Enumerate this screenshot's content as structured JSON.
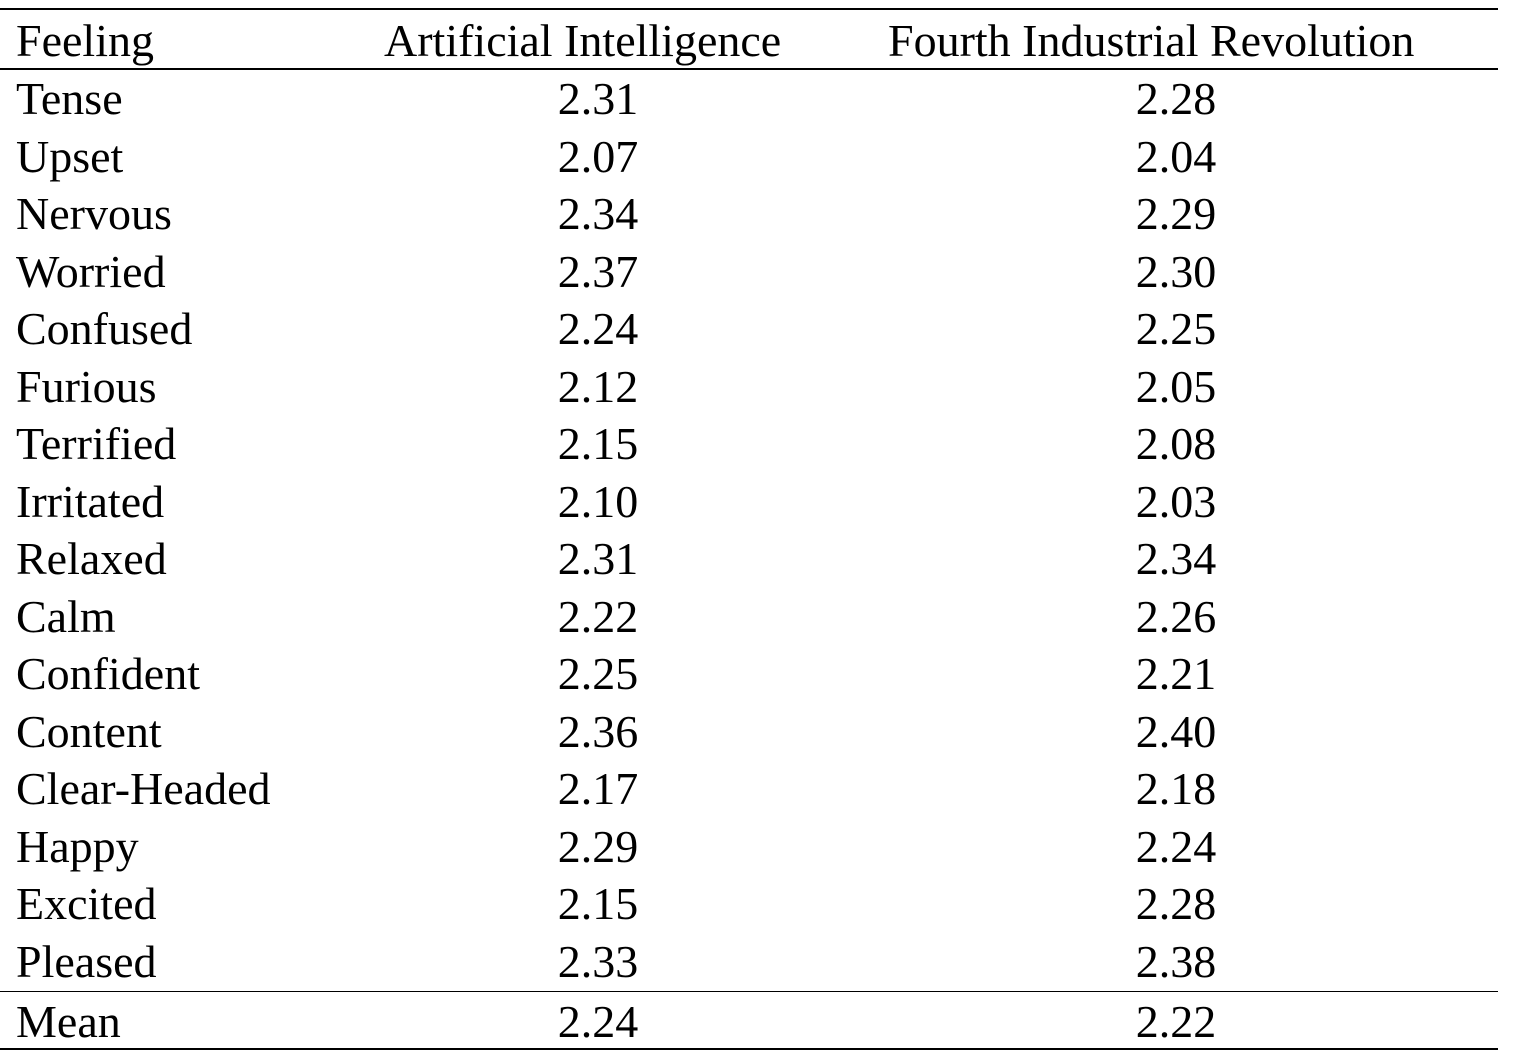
{
  "table": {
    "headers": [
      "Feeling",
      "Artificial Intelligence",
      "Fourth Industrial Revolution"
    ],
    "rows": [
      {
        "feeling": "Tense",
        "ai": "2.31",
        "fir": "2.28"
      },
      {
        "feeling": "Upset",
        "ai": "2.07",
        "fir": "2.04"
      },
      {
        "feeling": "Nervous",
        "ai": "2.34",
        "fir": "2.29"
      },
      {
        "feeling": "Worried",
        "ai": "2.37",
        "fir": "2.30"
      },
      {
        "feeling": "Confused",
        "ai": "2.24",
        "fir": "2.25"
      },
      {
        "feeling": "Furious",
        "ai": "2.12",
        "fir": "2.05"
      },
      {
        "feeling": "Terrified",
        "ai": "2.15",
        "fir": "2.08"
      },
      {
        "feeling": "Irritated",
        "ai": "2.10",
        "fir": "2.03"
      },
      {
        "feeling": "Relaxed",
        "ai": "2.31",
        "fir": "2.34"
      },
      {
        "feeling": "Calm",
        "ai": "2.22",
        "fir": "2.26"
      },
      {
        "feeling": "Confident",
        "ai": "2.25",
        "fir": "2.21"
      },
      {
        "feeling": "Content",
        "ai": "2.36",
        "fir": "2.40"
      },
      {
        "feeling": "Clear-Headed",
        "ai": "2.17",
        "fir": "2.18"
      },
      {
        "feeling": "Happy",
        "ai": "2.29",
        "fir": "2.24"
      },
      {
        "feeling": "Excited",
        "ai": "2.15",
        "fir": "2.28"
      },
      {
        "feeling": "Pleased",
        "ai": "2.33",
        "fir": "2.38"
      }
    ],
    "mean": {
      "feeling": "Mean",
      "ai": "2.24",
      "fir": "2.22"
    }
  }
}
